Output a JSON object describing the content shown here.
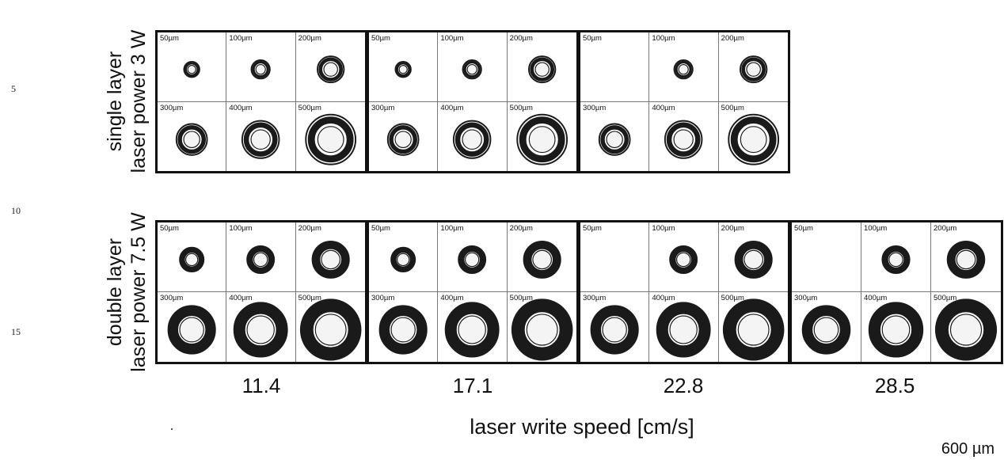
{
  "line_numbers": [
    "5",
    "10",
    "15"
  ],
  "rows": [
    {
      "label_line1": "single layer",
      "label_line2": "laser power 3 W",
      "groups": [
        {
          "cells": [
            "50µm",
            "100µm",
            "200µm",
            "300µm",
            "400µm",
            "500µm"
          ],
          "rings": [
            true,
            true,
            true,
            true,
            true,
            true
          ]
        },
        {
          "cells": [
            "50µm",
            "100µm",
            "200µm",
            "300µm",
            "400µm",
            "500µm"
          ],
          "rings": [
            true,
            true,
            true,
            true,
            true,
            true
          ]
        },
        {
          "cells": [
            "50µm",
            "100µm",
            "200µm",
            "300µm",
            "400µm",
            "500µm"
          ],
          "rings": [
            false,
            true,
            true,
            true,
            true,
            true
          ]
        }
      ]
    },
    {
      "label_line1": "double layer",
      "label_line2": "laser power 7.5 W",
      "groups": [
        {
          "cells": [
            "50µm",
            "100µm",
            "200µm",
            "300µm",
            "400µm",
            "500µm"
          ],
          "rings": [
            true,
            true,
            true,
            true,
            true,
            true
          ]
        },
        {
          "cells": [
            "50µm",
            "100µm",
            "200µm",
            "300µm",
            "400µm",
            "500µm"
          ],
          "rings": [
            true,
            true,
            true,
            true,
            true,
            true
          ]
        },
        {
          "cells": [
            "50µm",
            "100µm",
            "200µm",
            "300µm",
            "400µm",
            "500µm"
          ],
          "rings": [
            false,
            true,
            true,
            true,
            true,
            true
          ]
        },
        {
          "cells": [
            "50µm",
            "100µm",
            "200µm",
            "300µm",
            "400µm",
            "500µm"
          ],
          "rings": [
            false,
            true,
            true,
            true,
            true,
            true
          ]
        }
      ]
    }
  ],
  "speeds": [
    "11.4",
    "17.1",
    "22.8",
    "28.5"
  ],
  "axis_title": "laser write speed [cm/s]",
  "scale_bar": "600 µm",
  "colors": {
    "ring": "#1a1a1a",
    "frame": "#111111",
    "cell_border": "#777777"
  }
}
